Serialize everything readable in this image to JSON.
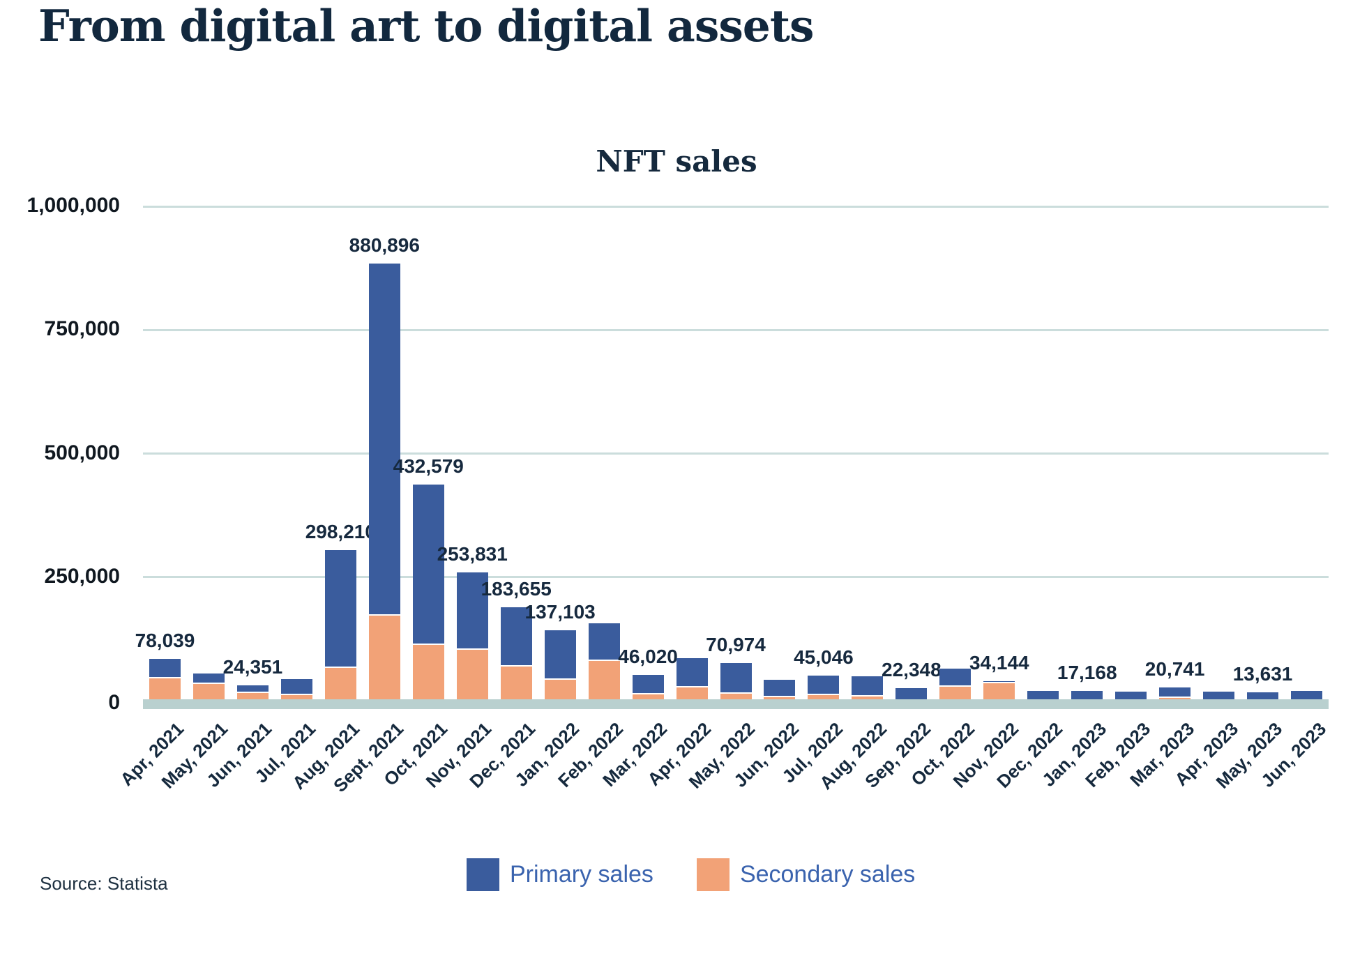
{
  "header": {
    "title": "From digital art to digital assets"
  },
  "source": {
    "text": "Source: Statista"
  },
  "chart": {
    "title": "NFT sales",
    "y_ticks": [
      "1,000,000",
      "750,000",
      "500,000",
      "250,000",
      "0"
    ],
    "legend": {
      "primary_label": "Primary sales",
      "secondary_label": "Secondary sales"
    }
  },
  "colors": {
    "primary_bar": "#3A5C9D",
    "secondary_bar": "#F2A277",
    "gridline": "#CBDDDC",
    "axis_band": "#B9D0CF",
    "heading_text": "#12283E",
    "data_label_text": "#16293E",
    "legend_text": "#3A63AE",
    "source_text": "#1D3040"
  },
  "chart_data": {
    "type": "bar",
    "stacked": true,
    "title": "NFT sales",
    "xlabel": "",
    "ylabel": "",
    "ylim": [
      0,
      1000000
    ],
    "y_tick_values": [
      0,
      250000,
      500000,
      750000,
      1000000
    ],
    "grid": true,
    "legend_position": "bottom",
    "categories": [
      "Apr, 2021",
      "May, 2021",
      "Jun, 2021",
      "Jul, 2021",
      "Aug, 2021",
      "Sept, 2021",
      "Oct, 2021",
      "Nov, 2021",
      "Dec, 2021",
      "Jan, 2022",
      "Feb, 2022",
      "Mar, 2022",
      "Apr, 2022",
      "May, 2022",
      "Jun, 2022",
      "Jul, 2022",
      "Aug, 2022",
      "Sep, 2022",
      "Oct, 2022",
      "Nov, 2022",
      "Dec, 2022",
      "Jan, 2023",
      "Feb, 2023",
      "Mar, 2023",
      "Apr, 2023",
      "May, 2023",
      "Jun, 2023"
    ],
    "totals": [
      78039,
      49000,
      24351,
      38000,
      298210,
      880896,
      432579,
      253831,
      183655,
      137103,
      152000,
      46020,
      80000,
      70974,
      36000,
      45046,
      43000,
      22348,
      59000,
      34144,
      17000,
      17168,
      16000,
      20741,
      15000,
      13631,
      17000
    ],
    "total_labels": [
      "78,039",
      null,
      "24,351",
      null,
      "298,210",
      "880,896",
      "432,579",
      "253,831",
      "183,655",
      "137,103",
      null,
      "46,020",
      null,
      "70,974",
      null,
      "45,046",
      null,
      "22,348",
      null,
      "34,144",
      null,
      "17,168",
      null,
      "20,741",
      null,
      "13,631",
      null
    ],
    "series": [
      {
        "name": "Primary sales",
        "color": "#3A5C9D",
        "values": [
          36039,
          18000,
          12051,
          29500,
          235210,
          710896,
          322579,
          153831,
          117655,
          98103,
          74000,
          36020,
          56000,
          59974,
          32000,
          37046,
          38000,
          22348,
          34000,
          1144,
          17000,
          17168,
          16000,
          17741,
          15000,
          13631,
          17000
        ]
      },
      {
        "name": "Secondary sales",
        "color": "#F2A277",
        "values": [
          42000,
          31000,
          12300,
          8500,
          63000,
          170000,
          110000,
          100000,
          66000,
          39000,
          78000,
          10000,
          24000,
          11000,
          4000,
          8000,
          5000,
          0,
          25000,
          33000,
          0,
          0,
          0,
          3000,
          0,
          0,
          0
        ]
      }
    ]
  }
}
